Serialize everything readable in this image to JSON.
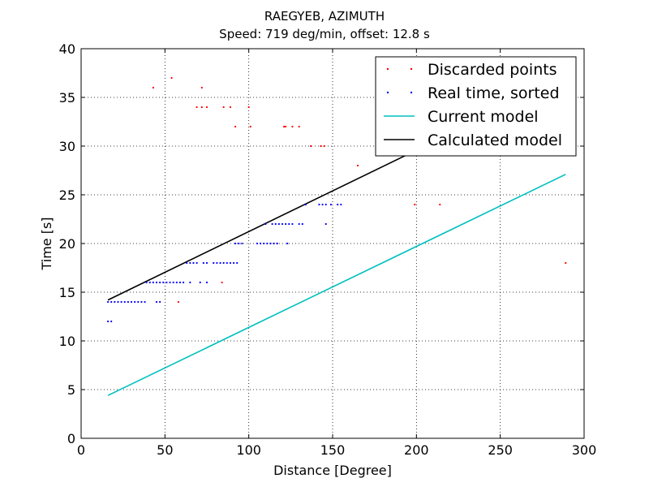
{
  "chart_data": {
    "type": "scatter",
    "title": "RAEGYEB, AZIMUTH",
    "subtitle": "Speed: 719 deg/min, offset: 12.8 s",
    "xlabel": "Distance [Degree]",
    "ylabel": "Time [s]",
    "xlim": [
      0,
      300
    ],
    "ylim": [
      0,
      40
    ],
    "xticks": [
      0,
      50,
      100,
      150,
      200,
      250,
      300
    ],
    "yticks": [
      0,
      5,
      10,
      15,
      20,
      25,
      30,
      35,
      40
    ],
    "grid": true,
    "legend_position": "top-right",
    "series": [
      {
        "name": "Discarded points",
        "kind": "scatter",
        "color": "#ff0000",
        "points": [
          [
            43,
            36
          ],
          [
            54,
            37
          ],
          [
            72,
            36
          ],
          [
            69,
            34
          ],
          [
            72,
            34
          ],
          [
            75,
            34
          ],
          [
            85,
            34
          ],
          [
            89,
            34
          ],
          [
            100,
            34
          ],
          [
            92,
            32
          ],
          [
            101,
            32
          ],
          [
            121,
            32
          ],
          [
            122,
            32
          ],
          [
            126,
            32
          ],
          [
            130,
            32
          ],
          [
            137,
            30
          ],
          [
            143,
            30
          ],
          [
            145,
            30
          ],
          [
            165,
            28
          ],
          [
            199,
            24
          ],
          [
            214,
            24
          ],
          [
            84,
            16
          ],
          [
            58,
            14
          ],
          [
            289,
            18
          ]
        ]
      },
      {
        "name": "Real time, sorted",
        "kind": "scatter",
        "color": "#0000ff",
        "points": [
          [
            16,
            14
          ],
          [
            18,
            14
          ],
          [
            20,
            14
          ],
          [
            22,
            14
          ],
          [
            24,
            14
          ],
          [
            26,
            14
          ],
          [
            28,
            14
          ],
          [
            30,
            14
          ],
          [
            32,
            14
          ],
          [
            34,
            14
          ],
          [
            36,
            14
          ],
          [
            38,
            14
          ],
          [
            45,
            14
          ],
          [
            47,
            14
          ],
          [
            16,
            12
          ],
          [
            18,
            12
          ],
          [
            39,
            16
          ],
          [
            41,
            16
          ],
          [
            43,
            16
          ],
          [
            45,
            16
          ],
          [
            47,
            16
          ],
          [
            49,
            16
          ],
          [
            51,
            16
          ],
          [
            53,
            16
          ],
          [
            55,
            16
          ],
          [
            57,
            16
          ],
          [
            59,
            16
          ],
          [
            61,
            16
          ],
          [
            65,
            16
          ],
          [
            71,
            16
          ],
          [
            75,
            16
          ],
          [
            63,
            18
          ],
          [
            65,
            18
          ],
          [
            67,
            18
          ],
          [
            69,
            18
          ],
          [
            73,
            18
          ],
          [
            75,
            18
          ],
          [
            79,
            18
          ],
          [
            81,
            18
          ],
          [
            83,
            18
          ],
          [
            85,
            18
          ],
          [
            87,
            18
          ],
          [
            89,
            18
          ],
          [
            91,
            18
          ],
          [
            93,
            18
          ],
          [
            92,
            20
          ],
          [
            94,
            20
          ],
          [
            96,
            20
          ],
          [
            105,
            20
          ],
          [
            107,
            20
          ],
          [
            109,
            20
          ],
          [
            111,
            20
          ],
          [
            113,
            20
          ],
          [
            115,
            20
          ],
          [
            117,
            20
          ],
          [
            123,
            20
          ],
          [
            110,
            22
          ],
          [
            114,
            22
          ],
          [
            116,
            22
          ],
          [
            118,
            22
          ],
          [
            120,
            22
          ],
          [
            122,
            22
          ],
          [
            124,
            22
          ],
          [
            126,
            22
          ],
          [
            130,
            22
          ],
          [
            132,
            22
          ],
          [
            146,
            22
          ],
          [
            134,
            24
          ],
          [
            142,
            24
          ],
          [
            144,
            24
          ],
          [
            146,
            24
          ],
          [
            149,
            24
          ],
          [
            153,
            24
          ],
          [
            155,
            24
          ]
        ]
      },
      {
        "name": "Current model",
        "kind": "line",
        "color": "#00bfbf",
        "x": [
          16,
          289
        ],
        "y": [
          4.4,
          27.1
        ]
      },
      {
        "name": "Calculated model",
        "kind": "line",
        "color": "#000000",
        "x": [
          16,
          199
        ],
        "y": [
          14.2,
          29.5
        ]
      }
    ]
  }
}
